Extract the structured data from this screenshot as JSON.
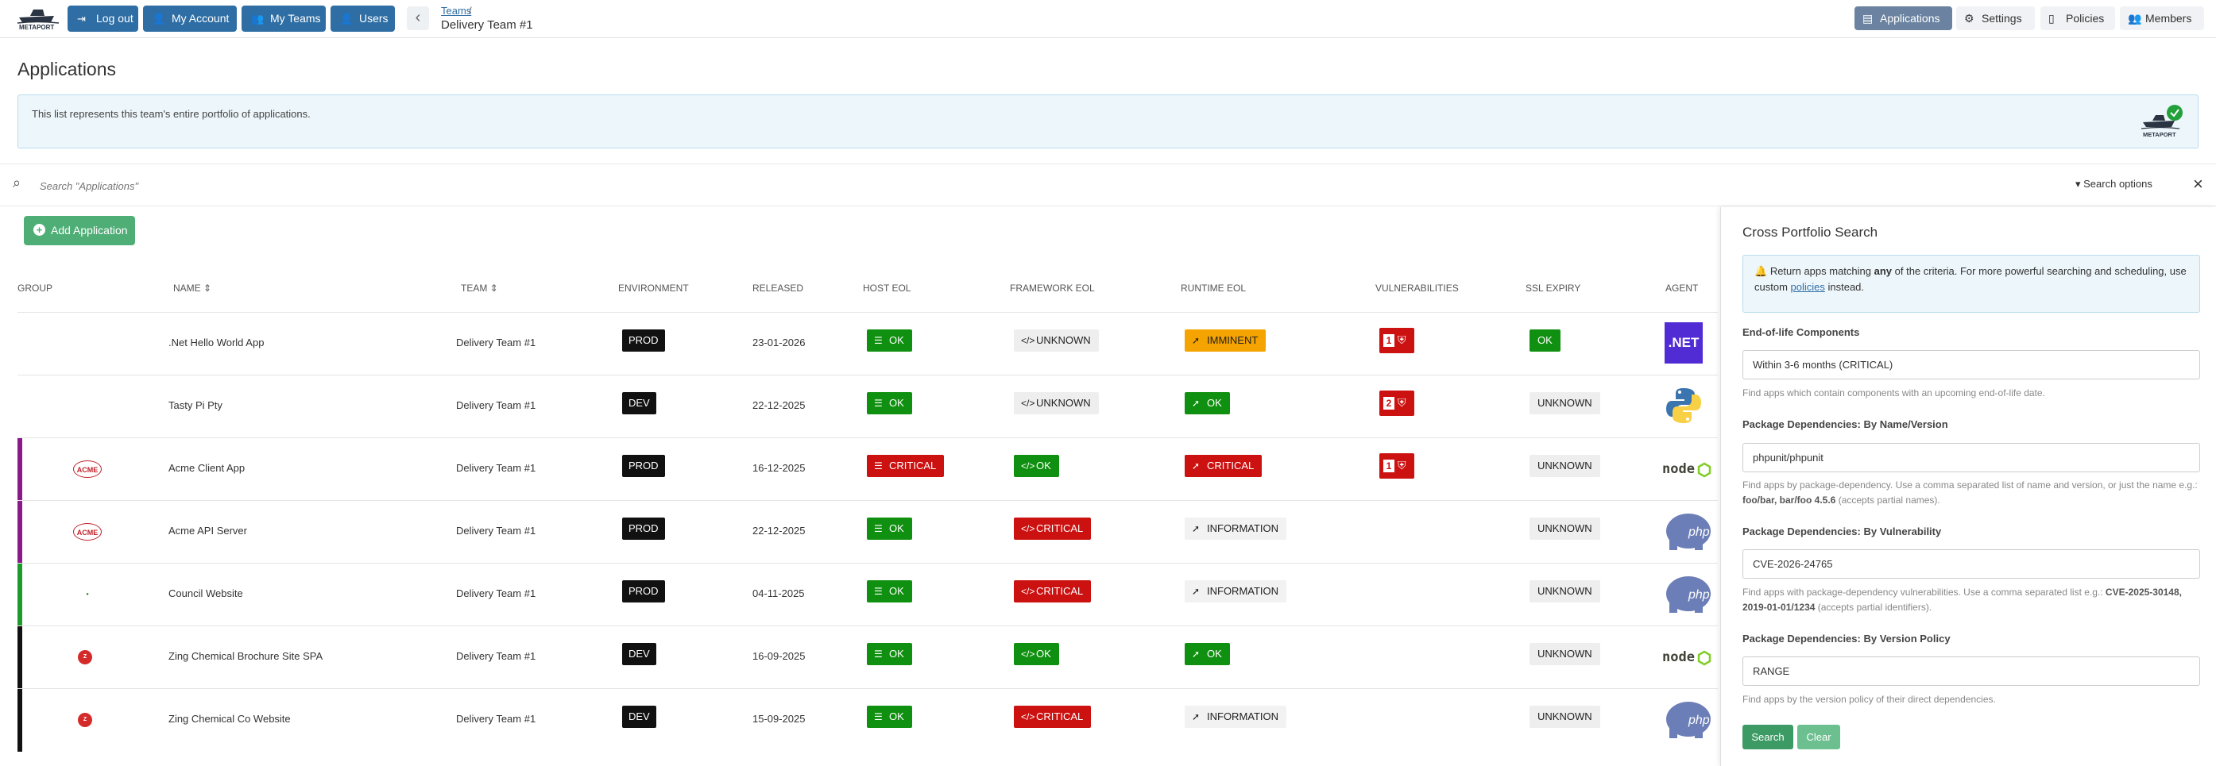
{
  "nav": {
    "logout": "Log out",
    "account": "My Account",
    "teams": "My Teams",
    "users": "Users",
    "breadcrumb_link": "Teams",
    "breadcrumb_sep": "/",
    "breadcrumb_title": "Delivery Team #1",
    "applications": "Applications",
    "settings": "Settings",
    "policies": "Policies",
    "members": "Members",
    "logo_text": "METAPORT"
  },
  "page": {
    "title": "Applications",
    "info": "This list represents this team's entire portfolio of applications.",
    "search_placeholder": "Search \"Applications\"",
    "search_options": "Search options",
    "add_application": "Add Application"
  },
  "table": {
    "headers": {
      "group": "GROUP",
      "name": "NAME",
      "team": "TEAM",
      "environment": "ENVIRONMENT",
      "released": "RELEASED",
      "host_eol": "HOST EOL",
      "framework_eol": "FRAMEWORK EOL",
      "runtime_eol": "RUNTIME EOL",
      "vulnerabilities": "VULNERABILITIES",
      "ssl_expiry": "SSL EXPIRY",
      "agent": "AGENT"
    },
    "rows": [
      {
        "group": "",
        "name": ".Net Hello World App",
        "team": "Delivery Team #1",
        "env": "PROD",
        "released": "23-01-2026",
        "host": "OK",
        "framework": "UNKNOWN",
        "runtime": "IMMINENT",
        "vuln": "1",
        "ssl": "OK",
        "agent": ".NET"
      },
      {
        "group": "",
        "name": "Tasty Pi Pty",
        "team": "Delivery Team #1",
        "env": "DEV",
        "released": "22-12-2025",
        "host": "OK",
        "framework": "UNKNOWN",
        "runtime": "OK",
        "vuln": "2",
        "ssl": "UNKNOWN",
        "agent": "python"
      },
      {
        "group": "ACME",
        "name": "Acme Client App",
        "team": "Delivery Team #1",
        "env": "PROD",
        "released": "16-12-2025",
        "host": "CRITICAL",
        "framework": "OK",
        "runtime": "CRITICAL",
        "vuln": "1",
        "ssl": "UNKNOWN",
        "agent": "node"
      },
      {
        "group": "ACME",
        "name": "Acme API Server",
        "team": "Delivery Team #1",
        "env": "PROD",
        "released": "22-12-2025",
        "host": "OK",
        "framework": "CRITICAL",
        "runtime": "INFORMATION",
        "vuln": "",
        "ssl": "UNKNOWN",
        "agent": "php"
      },
      {
        "group": "",
        "name": "Council Website",
        "team": "Delivery Team #1",
        "env": "PROD",
        "released": "04-11-2025",
        "host": "OK",
        "framework": "CRITICAL",
        "runtime": "INFORMATION",
        "vuln": "",
        "ssl": "UNKNOWN",
        "agent": "php"
      },
      {
        "group": "",
        "name": "Zing Chemical Brochure Site SPA",
        "team": "Delivery Team #1",
        "env": "DEV",
        "released": "16-09-2025",
        "host": "OK",
        "framework": "OK",
        "runtime": "OK",
        "vuln": "",
        "ssl": "UNKNOWN",
        "agent": "node"
      },
      {
        "group": "",
        "name": "Zing Chemical Co Website",
        "team": "Delivery Team #1",
        "env": "DEV",
        "released": "15-09-2025",
        "host": "OK",
        "framework": "CRITICAL",
        "runtime": "INFORMATION",
        "vuln": "",
        "ssl": "UNKNOWN",
        "agent": "php"
      }
    ]
  },
  "panel": {
    "title": "Cross Portfolio Search",
    "alert_pre": "Return apps matching ",
    "alert_any": "any",
    "alert_mid": " of the criteria. For more powerful searching and scheduling, use custom ",
    "alert_link": "policies",
    "alert_post": " instead.",
    "eol_label": "End-of-life Components",
    "eol_value": "Within 3-6 months (CRITICAL)",
    "eol_help": "Find apps which contain components with an upcoming end-of-life date.",
    "name_label": "Package Dependencies: By Name/Version",
    "name_value": "phpunit/phpunit",
    "name_help_1": "Find apps by package-dependency. Use a comma separated list of name and version, or just the name e.g.: ",
    "name_help_b": "foo/bar, bar/foo 4.5.6",
    "name_help_2": " (accepts partial names).",
    "vuln_label": "Package Dependencies: By Vulnerability",
    "vuln_value": "CVE-2026-24765",
    "vuln_help_1": "Find apps with package-dependency vulnerabilities. Use a comma separated list e.g.: ",
    "vuln_help_b": "CVE-2025-30148, 2019-01-01/1234",
    "vuln_help_2": " (accepts partial identifiers).",
    "policy_label": "Package Dependencies: By Version Policy",
    "policy_value": "RANGE",
    "policy_help": "Find apps by the version policy of their direct dependencies.",
    "search_btn": "Search",
    "clear_btn": "Clear"
  },
  "colors": {
    "primary": "#2f6ea4",
    "ok": "#109010",
    "critical": "#cc1111",
    "imminent": "#f5a300",
    "success_btn": "#4fae76"
  }
}
